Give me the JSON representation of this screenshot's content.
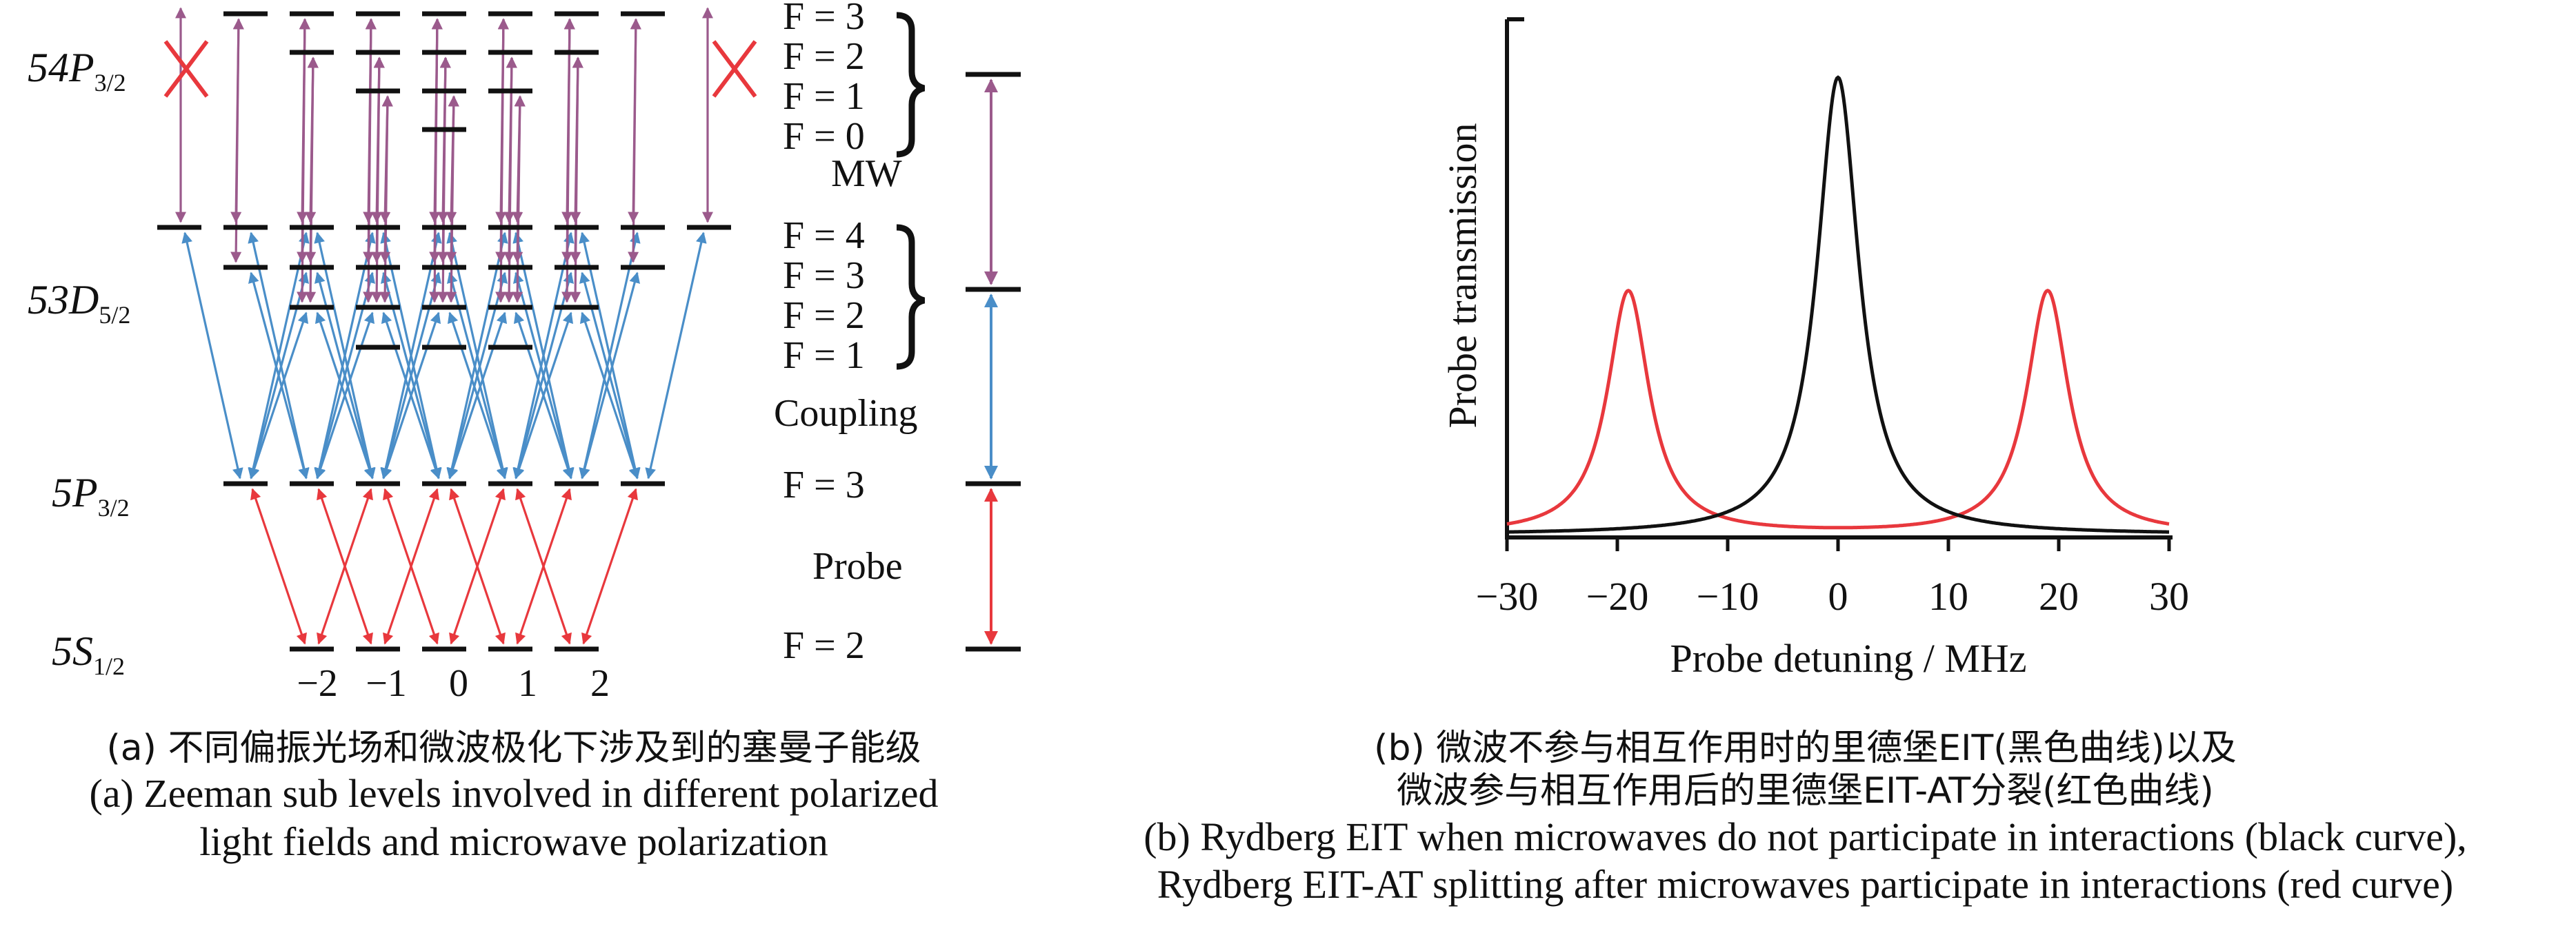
{
  "panel_a": {
    "levels": {
      "p54": {
        "label": "54P",
        "sub": "3/2"
      },
      "d53": {
        "label": "53D",
        "sub": "5/2"
      },
      "p5": {
        "label": "5P",
        "sub": "3/2"
      },
      "s5": {
        "label": "5S",
        "sub": "1/2"
      }
    },
    "f_labels": {
      "p54": [
        "F = 3",
        "F = 2",
        "F = 1",
        "F = 0"
      ],
      "d53": [
        "F = 4",
        "F = 3",
        "F = 2",
        "F = 1"
      ],
      "p5": "F = 3",
      "s5": "F = 2"
    },
    "transition_labels": {
      "mw": "MW",
      "coupling": "Coupling",
      "probe": "Probe"
    },
    "mf_labels": [
      "−2",
      "−1",
      "0",
      "1",
      "2"
    ],
    "colors": {
      "probe": "#e8383d",
      "coupling": "#4a8ec8",
      "mw": "#9b5a8c",
      "cross": "#e8383d",
      "level": "#111111"
    }
  },
  "panel_b": {
    "chart_data": {
      "type": "line",
      "xlabel": "Probe detuning / MHz",
      "ylabel": "Probe transmission",
      "xlim": [
        -30,
        30
      ],
      "xticks": [
        -30,
        -20,
        -10,
        0,
        10,
        20,
        30
      ],
      "xtick_labels": [
        "−30",
        "−20",
        "−10",
        "0",
        "10",
        "20",
        "30"
      ],
      "ylim": [
        0,
        1
      ],
      "series": [
        {
          "color": "#111111",
          "peaks": [
            {
              "center": 0,
              "height": 0.94,
              "fwhm": 4.6
            }
          ],
          "baseline": 0.0
        },
        {
          "color": "#e8383d",
          "peaks": [
            {
              "center": -19,
              "height": 0.5,
              "fwhm": 4.6
            },
            {
              "center": 19,
              "height": 0.5,
              "fwhm": 4.6
            }
          ],
          "baseline": 0.0
        }
      ]
    }
  },
  "captions": {
    "a_zh": "(a) 不同偏振光场和微波极化下涉及到的塞曼子能级",
    "a_en1": "(a) Zeeman sub levels involved in different polarized",
    "a_en2": "light fields and microwave polarization",
    "b_zh1": "(b) 微波不参与相互作用时的里德堡EIT(黑色曲线)以及",
    "b_zh2": "微波参与相互作用后的里德堡EIT-AT分裂(红色曲线)",
    "b_en1": "(b) Rydberg EIT when microwaves do not participate in interactions (black curve),",
    "b_en2": "Rydberg EIT-AT splitting after microwaves participate in interactions (red curve)"
  }
}
